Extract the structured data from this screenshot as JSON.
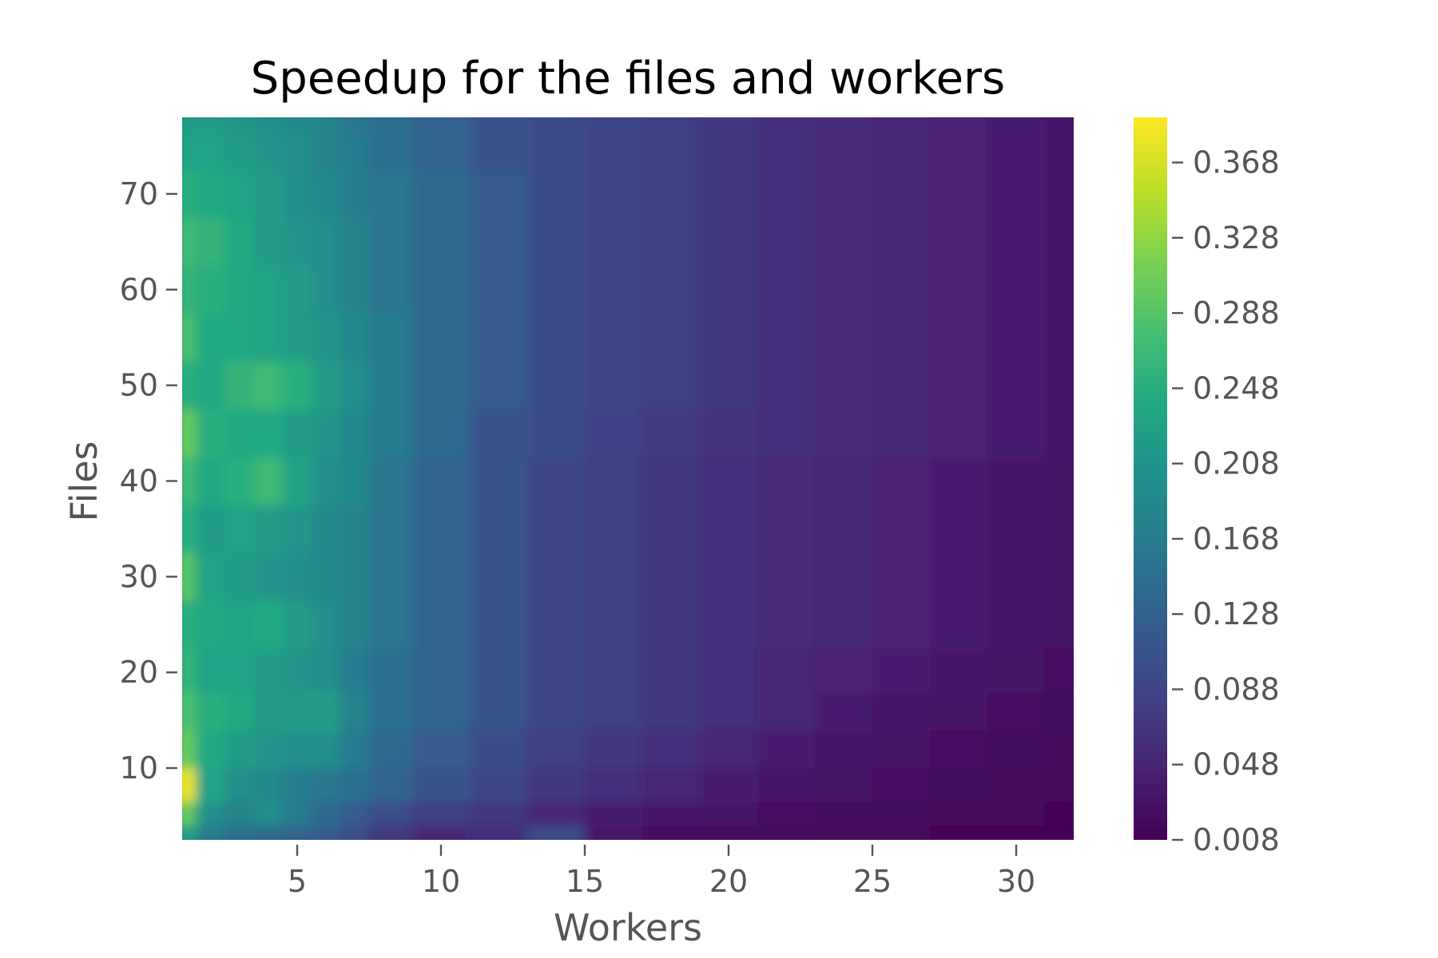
{
  "chart_data": {
    "type": "heatmap",
    "title": "Speedup for the files and workers",
    "xlabel": "Workers",
    "ylabel": "Files",
    "xlim": [
      1,
      32
    ],
    "ylim": [
      2.5,
      78
    ],
    "x_ticks": [
      5,
      10,
      15,
      20,
      25,
      30
    ],
    "y_ticks": [
      10,
      20,
      30,
      40,
      50,
      60,
      70
    ],
    "colormap": "viridis",
    "colorbar": {
      "range": [
        0.008,
        0.392
      ],
      "ticks": [
        0.368,
        0.328,
        0.288,
        0.248,
        0.208,
        0.168,
        0.128,
        0.088,
        0.048,
        0.008
      ],
      "tick_labels": [
        "0.368",
        "0.328",
        "0.288",
        "0.248",
        "0.208",
        "0.168",
        "0.128",
        "0.088",
        "0.048",
        "0.008"
      ]
    },
    "grid": false,
    "x": [
      1,
      2,
      3,
      4,
      5,
      6,
      7,
      8,
      10,
      12,
      14,
      16,
      18,
      20,
      22,
      24,
      26,
      28,
      30,
      32
    ],
    "y": [
      3,
      5,
      8,
      12,
      16,
      20,
      25,
      30,
      35,
      40,
      45,
      50,
      55,
      60,
      65,
      70,
      75,
      78
    ],
    "z": [
      [
        0.22,
        0.17,
        0.15,
        0.14,
        0.13,
        0.12,
        0.1,
        0.07,
        0.05,
        0.06,
        0.1,
        0.03,
        0.025,
        0.02,
        0.02,
        0.015,
        0.015,
        0.01,
        0.01,
        0.01
      ],
      [
        0.3,
        0.2,
        0.18,
        0.2,
        0.17,
        0.14,
        0.12,
        0.1,
        0.08,
        0.07,
        0.05,
        0.04,
        0.035,
        0.03,
        0.025,
        0.02,
        0.02,
        0.015,
        0.015,
        0.012
      ],
      [
        0.38,
        0.23,
        0.2,
        0.19,
        0.17,
        0.16,
        0.15,
        0.13,
        0.11,
        0.09,
        0.07,
        0.06,
        0.05,
        0.04,
        0.035,
        0.03,
        0.025,
        0.02,
        0.018,
        0.015
      ],
      [
        0.3,
        0.24,
        0.22,
        0.21,
        0.2,
        0.2,
        0.17,
        0.14,
        0.12,
        0.1,
        0.08,
        0.07,
        0.06,
        0.05,
        0.04,
        0.035,
        0.03,
        0.025,
        0.02,
        0.018
      ],
      [
        0.28,
        0.25,
        0.24,
        0.22,
        0.22,
        0.22,
        0.18,
        0.15,
        0.13,
        0.11,
        0.09,
        0.08,
        0.07,
        0.06,
        0.05,
        0.04,
        0.035,
        0.03,
        0.025,
        0.02
      ],
      [
        0.26,
        0.23,
        0.23,
        0.22,
        0.21,
        0.2,
        0.17,
        0.15,
        0.13,
        0.11,
        0.09,
        0.08,
        0.07,
        0.06,
        0.05,
        0.045,
        0.04,
        0.035,
        0.03,
        0.025
      ],
      [
        0.25,
        0.24,
        0.23,
        0.24,
        0.22,
        0.2,
        0.18,
        0.16,
        0.13,
        0.11,
        0.09,
        0.08,
        0.07,
        0.06,
        0.055,
        0.05,
        0.045,
        0.04,
        0.035,
        0.03
      ],
      [
        0.29,
        0.23,
        0.22,
        0.21,
        0.2,
        0.19,
        0.18,
        0.16,
        0.13,
        0.11,
        0.09,
        0.08,
        0.07,
        0.06,
        0.055,
        0.05,
        0.045,
        0.04,
        0.035,
        0.03
      ],
      [
        0.25,
        0.22,
        0.23,
        0.22,
        0.21,
        0.19,
        0.18,
        0.16,
        0.13,
        0.11,
        0.09,
        0.08,
        0.07,
        0.06,
        0.055,
        0.05,
        0.045,
        0.04,
        0.035,
        0.03
      ],
      [
        0.27,
        0.24,
        0.25,
        0.27,
        0.23,
        0.2,
        0.19,
        0.16,
        0.13,
        0.11,
        0.09,
        0.08,
        0.07,
        0.06,
        0.055,
        0.05,
        0.045,
        0.04,
        0.035,
        0.03
      ],
      [
        0.3,
        0.25,
        0.24,
        0.24,
        0.22,
        0.21,
        0.19,
        0.17,
        0.14,
        0.11,
        0.1,
        0.085,
        0.075,
        0.065,
        0.06,
        0.055,
        0.05,
        0.045,
        0.04,
        0.035
      ],
      [
        0.25,
        0.24,
        0.26,
        0.27,
        0.25,
        0.22,
        0.2,
        0.17,
        0.14,
        0.12,
        0.1,
        0.09,
        0.08,
        0.07,
        0.06,
        0.055,
        0.05,
        0.045,
        0.04,
        0.035
      ],
      [
        0.28,
        0.24,
        0.24,
        0.23,
        0.22,
        0.21,
        0.19,
        0.17,
        0.14,
        0.12,
        0.1,
        0.09,
        0.08,
        0.07,
        0.06,
        0.055,
        0.05,
        0.045,
        0.04,
        0.035
      ],
      [
        0.26,
        0.25,
        0.24,
        0.23,
        0.22,
        0.2,
        0.18,
        0.16,
        0.14,
        0.12,
        0.1,
        0.09,
        0.08,
        0.07,
        0.06,
        0.055,
        0.05,
        0.045,
        0.04,
        0.035
      ],
      [
        0.27,
        0.26,
        0.24,
        0.22,
        0.21,
        0.2,
        0.18,
        0.16,
        0.14,
        0.12,
        0.1,
        0.09,
        0.08,
        0.07,
        0.06,
        0.055,
        0.05,
        0.045,
        0.04,
        0.035
      ],
      [
        0.25,
        0.24,
        0.23,
        0.22,
        0.2,
        0.19,
        0.17,
        0.16,
        0.14,
        0.12,
        0.1,
        0.09,
        0.08,
        0.07,
        0.06,
        0.055,
        0.05,
        0.045,
        0.04,
        0.035
      ],
      [
        0.23,
        0.23,
        0.22,
        0.21,
        0.2,
        0.18,
        0.17,
        0.15,
        0.13,
        0.11,
        0.1,
        0.09,
        0.08,
        0.07,
        0.06,
        0.055,
        0.05,
        0.045,
        0.04,
        0.035
      ],
      [
        0.22,
        0.22,
        0.21,
        0.2,
        0.19,
        0.18,
        0.16,
        0.15,
        0.13,
        0.11,
        0.1,
        0.09,
        0.08,
        0.07,
        0.06,
        0.055,
        0.05,
        0.045,
        0.04,
        0.035
      ]
    ]
  }
}
